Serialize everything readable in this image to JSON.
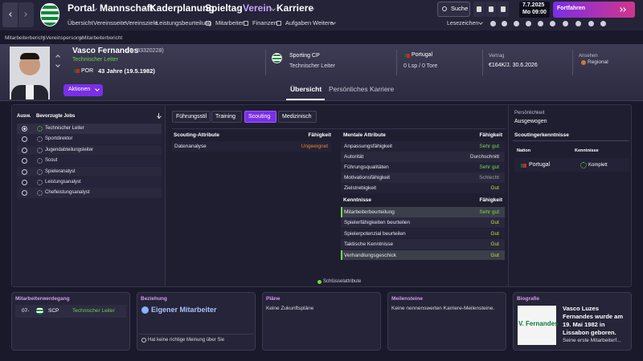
{
  "top_nav": {
    "items": [
      "Portal",
      "Mannschaft",
      "Kaderplanung",
      "Spieltag",
      "Verein",
      "Karriere"
    ],
    "search": "Suche",
    "date": "7.7.2025",
    "weekday": "Mo",
    "time": "09:00",
    "continue": "Fortfahren"
  },
  "sub_nav": {
    "items": [
      "Übersicht",
      "Vereinsseite",
      "Vereinsziele",
      "Leistungsbeurteilung",
      "Mitarbeiter",
      "Finanzen",
      "Aufgaben",
      "Weitere"
    ],
    "bookmarks": "Lesezeichen"
  },
  "breadcrumb": [
    "Mitarbeiterbericht",
    "Vereinspersonal",
    "Mitarbeiterbericht"
  ],
  "profile": {
    "name": "Vasco Fernandes",
    "id": "(ID: 83320228)",
    "role": "Technischer Leiter",
    "nationality": "POR",
    "age": "43 Jahre (19.5.1982)",
    "actions": "Aktionen",
    "club": "Sporting CP",
    "club_role": "Technischer Leiter",
    "country": "Portugal",
    "caps": "0 Lsp / 0 Tore",
    "contract_label": "Vertrag",
    "contract": "€164K/J. 30.6.2026",
    "reputation_label": "Ansehen",
    "reputation": "Regional"
  },
  "profile_tabs": [
    "Übersicht",
    "Persönliches",
    "Karriere"
  ],
  "preferred_jobs": {
    "headers": [
      "Ausw.",
      "Bevorzugte Jobs"
    ],
    "jobs": [
      "Technischer Leiter",
      "Sportdirektor",
      "Jugendabteilungsleiter",
      "Scout",
      "Spieleranalyst",
      "Leistungsanalyst",
      "Chefleistungsanalyst"
    ]
  },
  "attribute_tabs": [
    "Führungsstil",
    "Training",
    "Scouting",
    "Medizinisch"
  ],
  "scouting_attributes": {
    "header": "Scouting-Attribute",
    "rating_header": "Fähigkeit",
    "rows": [
      [
        "Datenanalyse",
        "Ungeeignet"
      ]
    ]
  },
  "mental_attributes": {
    "header": "Mentale Attribute",
    "rating_header": "Fähigkeit",
    "rows": [
      [
        "Anpassungsfähigkeit",
        "Sehr gut"
      ],
      [
        "Autorität",
        "Durchschnitt"
      ],
      [
        "Führungsqualitäten",
        "Sehr gut"
      ],
      [
        "Motivationsfähigkeit",
        "Schlecht"
      ],
      [
        "Zielstrebigkeit",
        "Gut"
      ]
    ]
  },
  "knowledge": {
    "header": "Kenntnisse",
    "rating_header": "Fähigkeit",
    "rows": [
      [
        "Mitarbeiterbeurteilung",
        "Sehr gut"
      ],
      [
        "Spielerfähigkeiten beurteilen",
        "Gut"
      ],
      [
        "Spielerpotenzial beurteilen",
        "Gut"
      ],
      [
        "Taktische Kenntnisse",
        "Gut"
      ],
      [
        "Verhandlungsgeschick",
        "Gut"
      ]
    ]
  },
  "legend": "Schlüsselattribute",
  "personality": {
    "label": "Persönlichkeit",
    "value": "Ausgewogen"
  },
  "scouting_knowledge": {
    "title": "Scoutingerkenntnisse",
    "headers": [
      "Nation",
      "Kenntnisse"
    ],
    "rows": [
      [
        "Portugal",
        "Komplett"
      ]
    ]
  },
  "cards": {
    "career": {
      "title": "Mitarbeiterwerdegang",
      "period": "07-",
      "club": "SCP",
      "role": "Technischer Leiter"
    },
    "relationship": {
      "title": "Beziehung",
      "status": "Eigener Mitarbeiter",
      "opinion": "Hat keine richtige Meinung über Sie"
    },
    "plans": {
      "title": "Pläne",
      "text": "Keine Zukunftspläne"
    },
    "milestones": {
      "title": "Meilensteine",
      "text": "Keine nennenswerten Karriere-Meilensteine."
    },
    "biography": {
      "title": "Biografie",
      "image_text": "V. Fernandes",
      "text": "Vasco Luzes Fernandes wurde am 19. Mai 1982 in Lissabon geboren.",
      "more": "Seine erste Mitarbeiterf..."
    }
  }
}
